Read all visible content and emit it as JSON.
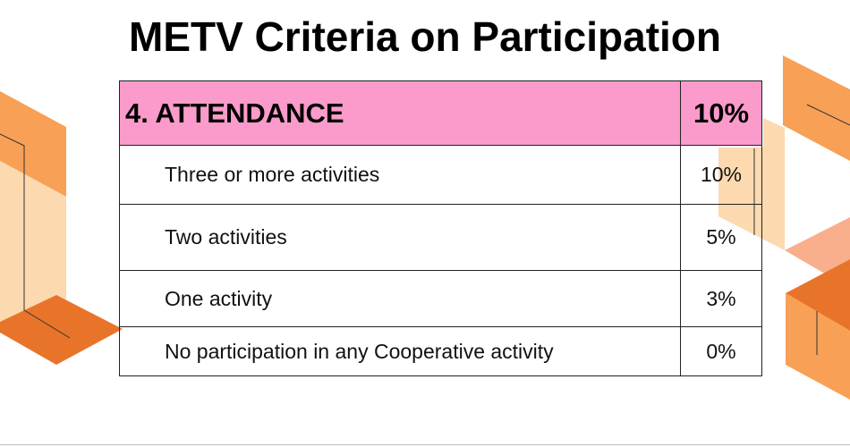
{
  "title": "METV Criteria on Participation",
  "table": {
    "header": {
      "label": "4. ATTENDANCE",
      "value": "10%"
    },
    "rows": [
      {
        "label": "Three or more activities",
        "value": "10%"
      },
      {
        "label": "Two activities",
        "value": "5%"
      },
      {
        "label": "One activity",
        "value": "3%"
      },
      {
        "label": "No participation in any Cooperative activity",
        "value": "0%"
      }
    ]
  },
  "colors": {
    "header_bg": "#fb9bcb",
    "orange": "#f8a055",
    "dark_orange": "#e8742a",
    "peach": "#fdd9b0",
    "salmon": "#f9ae8c"
  }
}
